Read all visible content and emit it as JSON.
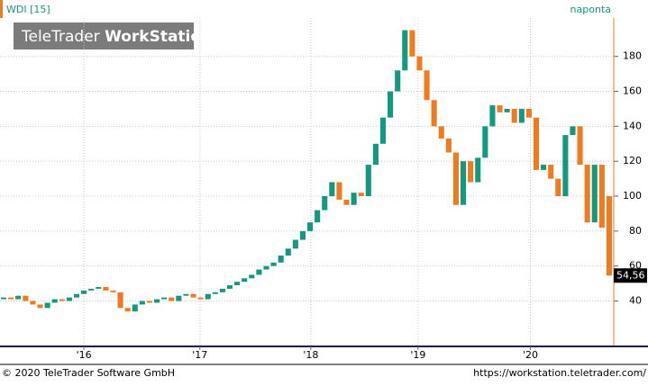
{
  "header": {
    "instrument": "WDI [15]",
    "interval": "naponta",
    "watermark_light": "TeleTrader",
    "watermark_bold": "WorkStation"
  },
  "footer": {
    "copyright": "© 2020 TeleTrader Software GmbH",
    "url": "https://workstation.teletrader.com/"
  },
  "chart_data": {
    "type": "candlestick",
    "up_color": "#129a80",
    "down_color": "#f07a1e",
    "grid": true,
    "open": [
      41,
      42,
      41,
      43,
      40,
      38,
      36,
      39,
      41,
      40,
      42,
      44,
      46,
      47,
      48,
      46,
      45,
      36,
      34,
      38,
      40,
      39,
      41,
      42,
      40,
      43,
      44,
      42,
      41,
      44,
      45,
      47,
      49,
      51,
      53,
      55,
      58,
      60,
      62,
      66,
      70,
      75,
      80,
      85,
      92,
      100,
      108,
      98,
      95,
      102,
      100,
      118,
      130,
      145,
      160,
      172,
      195,
      180,
      172,
      155,
      140,
      133,
      125,
      95,
      120,
      108,
      122,
      140,
      152,
      148,
      150,
      142,
      150,
      145,
      115,
      118,
      110,
      100,
      135,
      140,
      118,
      85,
      118,
      100
    ],
    "close": [
      42,
      41,
      43,
      40,
      38,
      36,
      39,
      41,
      40,
      42,
      44,
      46,
      47,
      48,
      46,
      45,
      36,
      34,
      38,
      40,
      39,
      41,
      42,
      40,
      43,
      44,
      42,
      41,
      44,
      45,
      47,
      49,
      51,
      53,
      55,
      58,
      60,
      62,
      66,
      70,
      75,
      80,
      85,
      92,
      100,
      108,
      98,
      95,
      102,
      100,
      118,
      130,
      145,
      160,
      172,
      195,
      180,
      172,
      155,
      140,
      133,
      125,
      95,
      120,
      108,
      122,
      140,
      152,
      148,
      150,
      142,
      150,
      145,
      115,
      118,
      110,
      100,
      135,
      140,
      118,
      85,
      118,
      82,
      54.56
    ],
    "last_value": {
      "value": 54.56,
      "label": "54,56"
    },
    "xlim": [
      0,
      84
    ],
    "xticks": [
      {
        "value": 11.5,
        "label": "'16"
      },
      {
        "value": 27.4,
        "label": "'17"
      },
      {
        "value": 42.6,
        "label": "'18"
      },
      {
        "value": 57.3,
        "label": "'19"
      },
      {
        "value": 72.7,
        "label": "'20"
      }
    ],
    "ylim": [
      14,
      202
    ],
    "yticks": [
      40,
      60,
      80,
      100,
      120,
      140,
      160,
      180
    ]
  }
}
